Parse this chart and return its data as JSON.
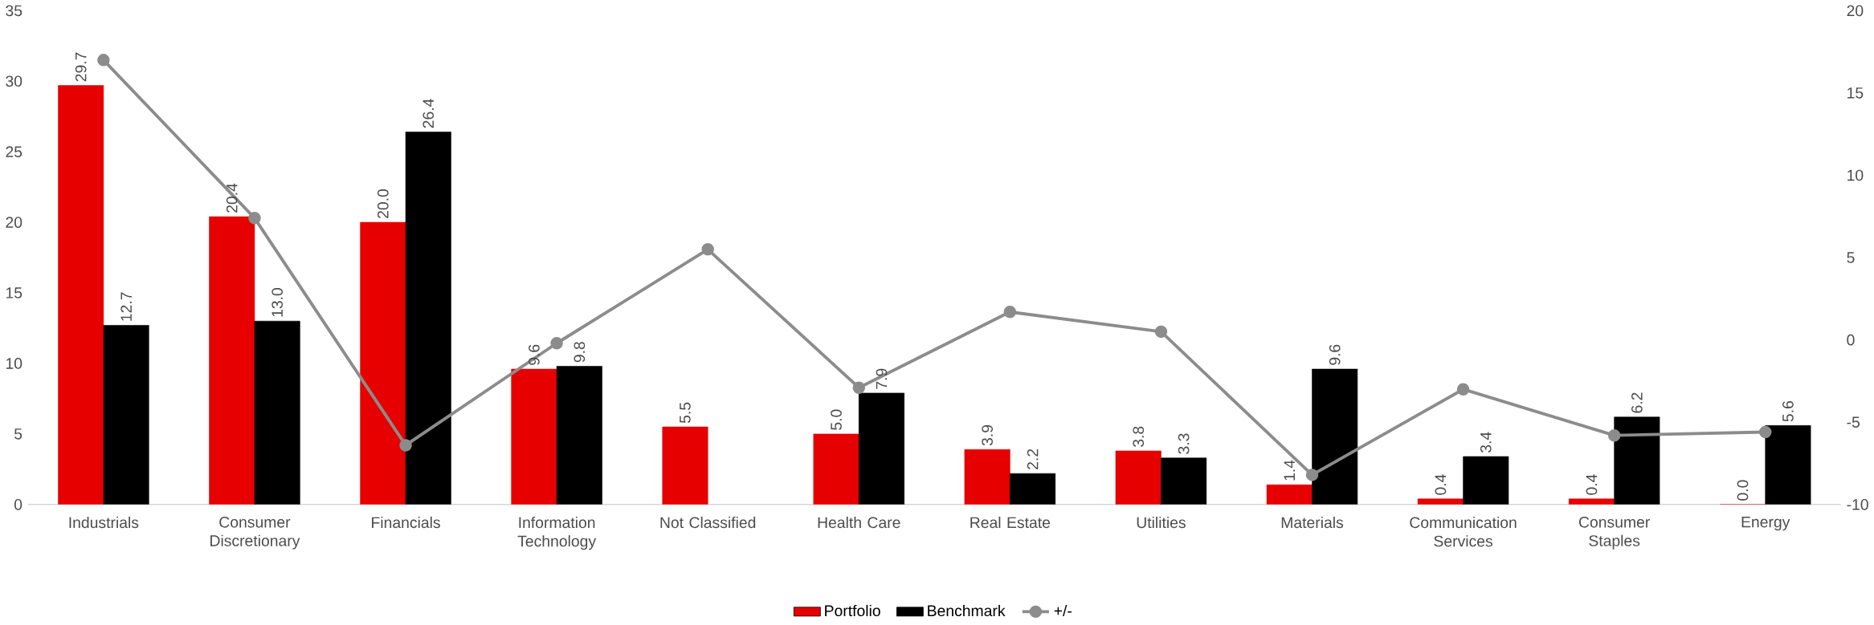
{
  "chart_data": {
    "type": "bar",
    "categories": [
      "Industrials",
      "Consumer Discretionary",
      "Financials",
      "Information Technology",
      "Not Classified",
      "Health Care",
      "Real Estate",
      "Utilities",
      "Materials",
      "Communication Services",
      "Consumer Staples",
      "Energy"
    ],
    "series": [
      {
        "name": "Portfolio",
        "color": "#e60000",
        "values": [
          29.7,
          20.4,
          20.0,
          9.6,
          5.5,
          5.0,
          3.9,
          3.8,
          1.4,
          0.4,
          0.4,
          0.0
        ],
        "value_labels": [
          "29.7",
          "20.4",
          "20.0",
          "9.6",
          "5.5",
          "5.0",
          "3.9",
          "3.8",
          "1.4",
          "0.4",
          "0.4",
          "0.0"
        ]
      },
      {
        "name": "Benchmark",
        "color": "#000000",
        "values": [
          12.7,
          13.0,
          26.4,
          9.8,
          null,
          7.9,
          2.2,
          3.3,
          9.6,
          3.4,
          6.2,
          5.6
        ],
        "value_labels": [
          "12.7",
          "13.0",
          "26.4",
          "9.8",
          null,
          "7.9",
          "2.2",
          "3.3",
          "9.6",
          "3.4",
          "6.2",
          "5.6"
        ]
      },
      {
        "name": "+/-",
        "type": "line",
        "axis": "y2",
        "color": "#8c8c8c",
        "marker": "circle",
        "values": [
          17.0,
          7.4,
          -6.4,
          -0.2,
          5.5,
          -2.9,
          1.7,
          0.5,
          -8.2,
          -3.0,
          -5.8,
          -5.6
        ]
      }
    ],
    "ylim": [
      0,
      35
    ],
    "yticks": [
      0,
      5,
      10,
      15,
      20,
      25,
      30,
      35
    ],
    "y2lim": [
      -10,
      20
    ],
    "y2ticks": [
      -10,
      -5,
      0,
      5,
      10,
      15,
      20
    ],
    "grid": false,
    "legend": "bottom"
  }
}
